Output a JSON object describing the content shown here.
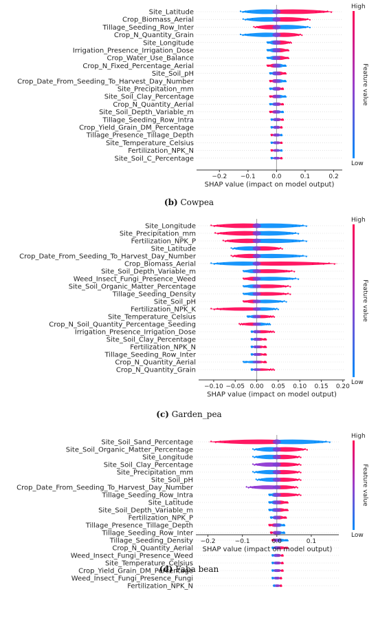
{
  "colorbar": {
    "high": "High",
    "low": "Low",
    "label": "Feature value",
    "color_high": "#ff0052",
    "color_low": "#008bfb"
  },
  "chart_data": [
    {
      "type": "beeswarm",
      "caption_letter": "(b)",
      "caption_text": "Cowpea",
      "xlabel": "SHAP value (impact on model output)",
      "xlim": [
        -0.28,
        0.23
      ],
      "ticks": [
        -0.2,
        -0.1,
        0.0,
        0.1,
        0.2
      ],
      "tick_labels": [
        "−0.2",
        "−0.1",
        "0.0",
        "0.1",
        "0.2"
      ],
      "features": [
        {
          "name": "Site_Latitude",
          "neg": -0.13,
          "pos": 0.2,
          "neg_color": "blue",
          "pos_color": "red"
        },
        {
          "name": "Crop_Biomass_Aerial",
          "neg": -0.12,
          "pos": 0.12,
          "neg_color": "blue",
          "pos_color": "red"
        },
        {
          "name": "Tillage_Seeding_Row_Inter",
          "neg": -0.08,
          "pos": 0.12,
          "neg_color": "red",
          "pos_color": "blue"
        },
        {
          "name": "Crop_N_Quantity_Grain",
          "neg": -0.13,
          "pos": 0.09,
          "neg_color": "blue",
          "pos_color": "red"
        },
        {
          "name": "Site_Longitude",
          "neg": -0.03,
          "pos": 0.05,
          "neg_color": "blue",
          "pos_color": "red"
        },
        {
          "name": "Irrigation_Presence_Irrigation_Dose",
          "neg": -0.03,
          "pos": 0.04,
          "neg_color": "blue",
          "pos_color": "red"
        },
        {
          "name": "Crop_Water_Use_Balance",
          "neg": -0.03,
          "pos": 0.04,
          "neg_color": "blue",
          "pos_color": "red"
        },
        {
          "name": "Crop_N_Fixed_Percentage_Aerial",
          "neg": -0.03,
          "pos": 0.03,
          "neg_color": "red",
          "pos_color": "blue"
        },
        {
          "name": "Site_Soil_pH",
          "neg": -0.02,
          "pos": 0.03,
          "neg_color": "blue",
          "pos_color": "red"
        },
        {
          "name": "Crop_Date_From_Seeding_To_Harvest_Day_Number",
          "neg": -0.02,
          "pos": 0.03,
          "neg_color": "red",
          "pos_color": "blue"
        },
        {
          "name": "Site_Precipitation_mm",
          "neg": -0.02,
          "pos": 0.02,
          "neg_color": "blue",
          "pos_color": "red"
        },
        {
          "name": "Site_Soil_Clay_Percentage",
          "neg": -0.02,
          "pos": 0.03,
          "neg_color": "red",
          "pos_color": "blue"
        },
        {
          "name": "Crop_N_Quantity_Aerial",
          "neg": -0.02,
          "pos": 0.02,
          "neg_color": "blue",
          "pos_color": "red"
        },
        {
          "name": "Site_Soil_Depth_Variable_m",
          "neg": -0.02,
          "pos": 0.02,
          "neg_color": "red",
          "pos_color": "blue"
        },
        {
          "name": "Tillage_Seeding_Row_Intra",
          "neg": -0.015,
          "pos": 0.02,
          "neg_color": "blue",
          "pos_color": "red"
        },
        {
          "name": "Crop_Yield_Grain_DM_Percentage",
          "neg": -0.015,
          "pos": 0.015,
          "neg_color": "blue",
          "pos_color": "red"
        },
        {
          "name": "Tillage_Presence_Tillage_Depth",
          "neg": -0.015,
          "pos": 0.015,
          "neg_color": "red",
          "pos_color": "blue"
        },
        {
          "name": "Site_Temperature_Celsius",
          "neg": -0.015,
          "pos": 0.015,
          "neg_color": "blue",
          "pos_color": "red"
        },
        {
          "name": "Fertilization_NPK_N",
          "neg": -0.015,
          "pos": 0.015,
          "neg_color": "red",
          "pos_color": "blue"
        },
        {
          "name": "Site_Soil_C_Percentage",
          "neg": -0.015,
          "pos": 0.015,
          "neg_color": "blue",
          "pos_color": "red"
        }
      ]
    },
    {
      "type": "beeswarm",
      "caption_letter": "(c)",
      "caption_text": "Garden_pea",
      "xlabel": "SHAP value (impact on model output)",
      "xlim": [
        -0.135,
        0.205
      ],
      "ticks": [
        -0.1,
        -0.05,
        0.0,
        0.05,
        0.1,
        0.15,
        0.2
      ],
      "tick_labels": [
        "−0.10",
        "−0.05",
        "0.00",
        "0.05",
        "0.10",
        "0.15",
        "0.20"
      ],
      "features": [
        {
          "name": "Site_Longitude",
          "neg": -0.11,
          "pos": 0.12,
          "neg_color": "red",
          "pos_color": "blue"
        },
        {
          "name": "Site_Precipitation_mm",
          "neg": -0.1,
          "pos": 0.1,
          "neg_color": "red",
          "pos_color": "blue"
        },
        {
          "name": "Fertilization_NPK_P",
          "neg": -0.08,
          "pos": 0.12,
          "neg_color": "red",
          "pos_color": "blue"
        },
        {
          "name": "Site_Latitude",
          "neg": -0.06,
          "pos": 0.06,
          "neg_color": "blue",
          "pos_color": "red"
        },
        {
          "name": "Crop_Date_From_Seeding_To_Harvest_Day_Number",
          "neg": -0.06,
          "pos": 0.12,
          "neg_color": "red",
          "pos_color": "blue"
        },
        {
          "name": "Crop_Biomass_Aerial",
          "neg": -0.11,
          "pos": 0.19,
          "neg_color": "blue",
          "pos_color": "red"
        },
        {
          "name": "Site_Soil_Depth_Variable_m",
          "neg": -0.03,
          "pos": 0.09,
          "neg_color": "blue",
          "pos_color": "red"
        },
        {
          "name": "Weed_Insect_Fungi_Presence_Weed",
          "neg": -0.03,
          "pos": 0.1,
          "neg_color": "red",
          "pos_color": "blue"
        },
        {
          "name": "Site_Soil_Organic_Matter_Percentage",
          "neg": -0.03,
          "pos": 0.08,
          "neg_color": "blue",
          "pos_color": "red"
        },
        {
          "name": "Tillage_Seeding_Density",
          "neg": -0.03,
          "pos": 0.08,
          "neg_color": "blue",
          "pos_color": "red"
        },
        {
          "name": "Site_Soil_pH",
          "neg": -0.03,
          "pos": 0.07,
          "neg_color": "red",
          "pos_color": "blue"
        },
        {
          "name": "Fertilization_NPK_K",
          "neg": -0.11,
          "pos": 0.05,
          "neg_color": "red",
          "pos_color": "blue"
        },
        {
          "name": "Site_Temperature_Celsius",
          "neg": -0.02,
          "pos": 0.04,
          "neg_color": "blue",
          "pos_color": "red"
        },
        {
          "name": "Crop_N_Soil_Quantity_Percentage_Seeding",
          "neg": -0.04,
          "pos": 0.03,
          "neg_color": "red",
          "pos_color": "blue"
        },
        {
          "name": "Irrigation_Presence_Irrigation_Dose",
          "neg": -0.01,
          "pos": 0.04,
          "neg_color": "blue",
          "pos_color": "red"
        },
        {
          "name": "Site_Soil_Clay_Percentage",
          "neg": -0.01,
          "pos": 0.02,
          "neg_color": "blue",
          "pos_color": "red"
        },
        {
          "name": "Fertilization_NPK_N",
          "neg": -0.01,
          "pos": 0.02,
          "neg_color": "blue",
          "pos_color": "red"
        },
        {
          "name": "Tillage_Seeding_Row_Inter",
          "neg": -0.01,
          "pos": 0.02,
          "neg_color": "blue",
          "pos_color": "red"
        },
        {
          "name": "Crop_N_Quantity_Aerial",
          "neg": -0.03,
          "pos": 0.02,
          "neg_color": "blue",
          "pos_color": "red"
        },
        {
          "name": "Crop_N_Quantity_Grain",
          "neg": -0.01,
          "pos": 0.04,
          "neg_color": "blue",
          "pos_color": "red"
        }
      ]
    },
    {
      "type": "beeswarm",
      "caption_letter": "(d)",
      "caption_text": "Faba bean",
      "xlabel": "SHAP value (impact on model output)",
      "xlim": [
        -0.235,
        0.18
      ],
      "ticks": [
        -0.2,
        -0.1,
        0.0,
        0.1
      ],
      "tick_labels": [
        "−0.2",
        "−0.1",
        "0.0",
        "0.1"
      ],
      "features": [
        {
          "name": "Site_Soil_Sand_Percentage",
          "neg": -0.2,
          "pos": 0.16,
          "neg_color": "red",
          "pos_color": "blue"
        },
        {
          "name": "Site_Soil_Organic_Matter_Percentage",
          "neg": -0.07,
          "pos": 0.09,
          "neg_color": "blue",
          "pos_color": "red"
        },
        {
          "name": "Site_Longitude",
          "neg": -0.07,
          "pos": 0.07,
          "neg_color": "blue",
          "pos_color": "red"
        },
        {
          "name": "Site_Soil_Clay_Percentage",
          "neg": -0.07,
          "pos": 0.07,
          "neg_color": "purple",
          "pos_color": "red"
        },
        {
          "name": "Site_Precipitation_mm",
          "neg": -0.07,
          "pos": 0.07,
          "neg_color": "blue",
          "pos_color": "red"
        },
        {
          "name": "Site_Soil_pH",
          "neg": -0.06,
          "pos": 0.07,
          "neg_color": "blue",
          "pos_color": "red"
        },
        {
          "name": "Crop_Date_From_Seeding_To_Harvest_Day_Number",
          "neg": -0.09,
          "pos": 0.06,
          "neg_color": "purple",
          "pos_color": "red"
        },
        {
          "name": "Tillage_Seeding_Row_Intra",
          "neg": -0.02,
          "pos": 0.07,
          "neg_color": "blue",
          "pos_color": "red"
        },
        {
          "name": "Site_Latitude",
          "neg": -0.02,
          "pos": 0.03,
          "neg_color": "blue",
          "pos_color": "red"
        },
        {
          "name": "Site_Soil_Depth_Variable_m",
          "neg": -0.02,
          "pos": 0.03,
          "neg_color": "blue",
          "pos_color": "red"
        },
        {
          "name": "Fertilization_NPK_P",
          "neg": -0.015,
          "pos": 0.025,
          "neg_color": "blue",
          "pos_color": "red"
        },
        {
          "name": "Tillage_Presence_Tillage_Depth",
          "neg": -0.02,
          "pos": 0.02,
          "neg_color": "red",
          "pos_color": "blue"
        },
        {
          "name": "Tillage_Seeding_Row_Inter",
          "neg": -0.015,
          "pos": 0.02,
          "neg_color": "red",
          "pos_color": "blue"
        },
        {
          "name": "Tillage_Seeding_Density",
          "neg": -0.01,
          "pos": 0.03,
          "neg_color": "red",
          "pos_color": "blue"
        },
        {
          "name": "Crop_N_Quantity_Aerial",
          "neg": -0.01,
          "pos": 0.03,
          "neg_color": "blue",
          "pos_color": "red"
        },
        {
          "name": "Weed_Insect_Fungi_Presence_Weed",
          "neg": -0.01,
          "pos": 0.015,
          "neg_color": "blue",
          "pos_color": "red"
        },
        {
          "name": "Site_Temperature_Celsius",
          "neg": -0.01,
          "pos": 0.015,
          "neg_color": "blue",
          "pos_color": "red"
        },
        {
          "name": "Crop_Yield_Grain_DM_Percentage",
          "neg": -0.01,
          "pos": 0.015,
          "neg_color": "blue",
          "pos_color": "red"
        },
        {
          "name": "Weed_Insect_Fungi_Presence_Fungi",
          "neg": -0.01,
          "pos": 0.01,
          "neg_color": "blue",
          "pos_color": "red"
        },
        {
          "name": "Fertilization_NPK_N",
          "neg": -0.005,
          "pos": 0.01,
          "neg_color": "blue",
          "pos_color": "red"
        }
      ]
    }
  ]
}
